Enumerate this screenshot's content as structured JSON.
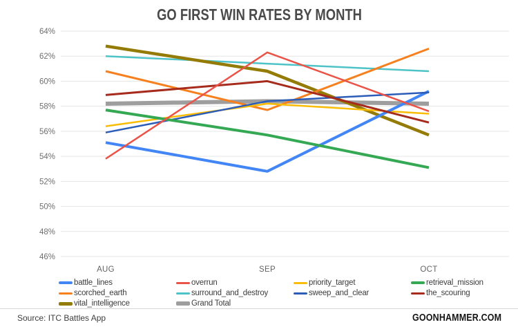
{
  "footer": {
    "source": "Source: ITC Battles App",
    "brand": "GOONHAMMER.COM"
  },
  "chart_data": {
    "type": "line",
    "title": "GO FIRST WIN RATES BY MONTH",
    "categories": [
      "AUG",
      "SEP",
      "OCT"
    ],
    "xlabel": "",
    "ylabel": "",
    "ylim": [
      46,
      64
    ],
    "y_tick_step": 2,
    "y_tick_labels": [
      "64%",
      "62%",
      "60%",
      "58%",
      "56%",
      "54%",
      "52%",
      "50%",
      "48%",
      "46%"
    ],
    "grid": "horizontal",
    "legend_position": "bottom",
    "legend_columns": 4,
    "axis_text_color": "#6f6f6f",
    "gridline_color": "#e6e6e6",
    "series": [
      {
        "name": "battle_lines",
        "color": "#4285F4",
        "width": 4,
        "values": [
          55.1,
          52.8,
          59.2
        ]
      },
      {
        "name": "overrun",
        "color": "#EA5348",
        "width": 2.5,
        "values": [
          53.8,
          62.3,
          57.6
        ]
      },
      {
        "name": "priority_target",
        "color": "#FBBC04",
        "width": 2.5,
        "values": [
          56.4,
          58.2,
          57.4
        ]
      },
      {
        "name": "retrieval_mission",
        "color": "#34A853",
        "width": 4,
        "values": [
          57.7,
          55.7,
          53.1
        ]
      },
      {
        "name": "scorched_earth",
        "color": "#F7801E",
        "width": 3,
        "values": [
          60.8,
          57.7,
          62.6
        ]
      },
      {
        "name": "surround_and_destroy",
        "color": "#4EC3C7",
        "width": 2.5,
        "values": [
          62.0,
          61.4,
          60.8
        ]
      },
      {
        "name": "sweep_and_clear",
        "color": "#2A5CB8",
        "width": 2.5,
        "values": [
          55.9,
          58.4,
          59.1
        ]
      },
      {
        "name": "the_scouring",
        "color": "#A62B1C",
        "width": 3,
        "values": [
          58.9,
          60.0,
          56.7
        ]
      },
      {
        "name": "vital_intelligence",
        "color": "#947B06",
        "width": 4.5,
        "values": [
          62.8,
          60.8,
          55.7
        ]
      },
      {
        "name": "Grand Total",
        "color": "#9E9E9E",
        "width": 6,
        "values": [
          58.2,
          58.4,
          58.2
        ]
      }
    ],
    "draw_order": [
      "Grand Total",
      "surround_and_destroy",
      "vital_intelligence",
      "scorched_earth",
      "priority_target",
      "battle_lines",
      "sweep_and_clear",
      "retrieval_mission",
      "the_scouring",
      "overrun"
    ]
  }
}
